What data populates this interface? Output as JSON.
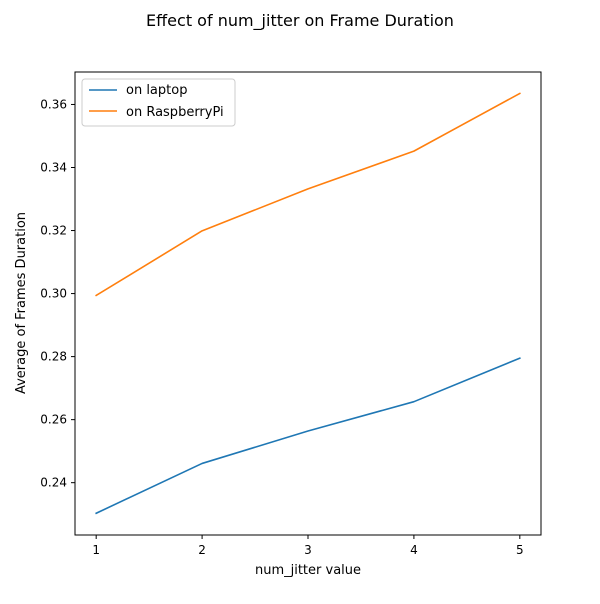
{
  "chart_data": {
    "type": "line",
    "title": "Effect of num_jitter on Frame Duration",
    "xlabel": "num_jitter value",
    "ylabel": "Average of Frames Duration",
    "x": [
      1,
      2,
      3,
      4,
      5
    ],
    "xticks": [
      "1",
      "2",
      "3",
      "4",
      "5"
    ],
    "yticks": [
      "0.24",
      "0.26",
      "0.28",
      "0.30",
      "0.32",
      "0.34",
      "0.36"
    ],
    "xlim": [
      0.8,
      5.2
    ],
    "ylim": [
      0.2234,
      0.3703
    ],
    "grid": false,
    "legend_position": "upper-left",
    "series": [
      {
        "name": "on laptop",
        "color": "#1f77b4",
        "values": [
          0.2303,
          0.2461,
          0.2564,
          0.2657,
          0.2795
        ]
      },
      {
        "name": "on RaspberryPi",
        "color": "#ff7f0e",
        "values": [
          0.2994,
          0.3199,
          0.3332,
          0.3452,
          0.3635
        ]
      }
    ]
  }
}
